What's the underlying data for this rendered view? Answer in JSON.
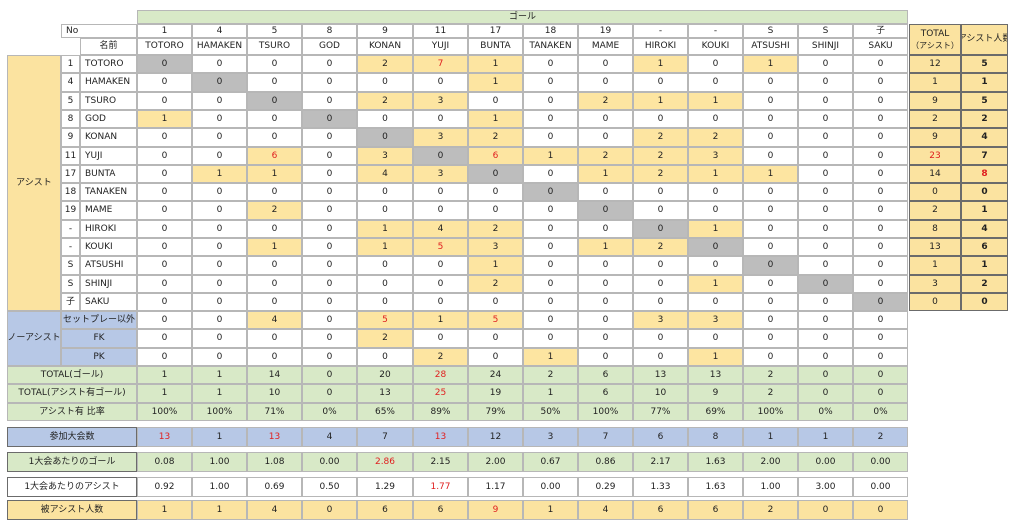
{
  "header": {
    "no_label": "No",
    "name_label": "名前",
    "goal_label": "ゴール",
    "assist_label": "アシスト",
    "no_assist_label": "ノーアシスト",
    "total_assist_label_1": "TOTAL",
    "total_assist_label_2": "（アシスト）",
    "assist_people_label": "アシスト人数"
  },
  "players": [
    {
      "no": "1",
      "name": "TOTORO"
    },
    {
      "no": "4",
      "name": "HAMAKEN"
    },
    {
      "no": "5",
      "name": "TSURO"
    },
    {
      "no": "8",
      "name": "GOD"
    },
    {
      "no": "9",
      "name": "KONAN"
    },
    {
      "no": "11",
      "name": "YUJI"
    },
    {
      "no": "17",
      "name": "BUNTA"
    },
    {
      "no": "18",
      "name": "TANAKEN"
    },
    {
      "no": "19",
      "name": "MAME"
    },
    {
      "no": "-",
      "name": "HIROKI"
    },
    {
      "no": "-",
      "name": "KOUKI"
    },
    {
      "no": "S",
      "name": "ATSUSHI"
    },
    {
      "no": "S",
      "name": "SHINJI"
    },
    {
      "no": "子",
      "name": "SAKU"
    }
  ],
  "matrix": [
    [
      "0",
      "0",
      "0",
      "0",
      "2",
      "7",
      "1",
      "0",
      "0",
      "1",
      "0",
      "1",
      "0",
      "0"
    ],
    [
      "0",
      "0",
      "0",
      "0",
      "0",
      "0",
      "1",
      "0",
      "0",
      "0",
      "0",
      "0",
      "0",
      "0"
    ],
    [
      "0",
      "0",
      "0",
      "0",
      "2",
      "3",
      "0",
      "0",
      "2",
      "1",
      "1",
      "0",
      "0",
      "0"
    ],
    [
      "1",
      "0",
      "0",
      "0",
      "0",
      "0",
      "1",
      "0",
      "0",
      "0",
      "0",
      "0",
      "0",
      "0"
    ],
    [
      "0",
      "0",
      "0",
      "0",
      "0",
      "3",
      "2",
      "0",
      "0",
      "2",
      "2",
      "0",
      "0",
      "0"
    ],
    [
      "0",
      "0",
      "6",
      "0",
      "3",
      "0",
      "6",
      "1",
      "2",
      "2",
      "3",
      "0",
      "0",
      "0"
    ],
    [
      "0",
      "1",
      "1",
      "0",
      "4",
      "3",
      "0",
      "0",
      "1",
      "2",
      "1",
      "1",
      "0",
      "0"
    ],
    [
      "0",
      "0",
      "0",
      "0",
      "0",
      "0",
      "0",
      "0",
      "0",
      "0",
      "0",
      "0",
      "0",
      "0"
    ],
    [
      "0",
      "0",
      "2",
      "0",
      "0",
      "0",
      "0",
      "0",
      "0",
      "0",
      "0",
      "0",
      "0",
      "0"
    ],
    [
      "0",
      "0",
      "0",
      "0",
      "1",
      "4",
      "2",
      "0",
      "0",
      "0",
      "1",
      "0",
      "0",
      "0"
    ],
    [
      "0",
      "0",
      "1",
      "0",
      "1",
      "5",
      "3",
      "0",
      "1",
      "2",
      "0",
      "0",
      "0",
      "0"
    ],
    [
      "0",
      "0",
      "0",
      "0",
      "0",
      "0",
      "1",
      "0",
      "0",
      "0",
      "0",
      "0",
      "0",
      "0"
    ],
    [
      "0",
      "0",
      "0",
      "0",
      "0",
      "0",
      "2",
      "0",
      "0",
      "0",
      "1",
      "0",
      "0",
      "0"
    ],
    [
      "0",
      "0",
      "0",
      "0",
      "0",
      "0",
      "0",
      "0",
      "0",
      "0",
      "0",
      "0",
      "0",
      "0"
    ]
  ],
  "matrix_red": [
    [
      0,
      5
    ],
    [
      5,
      2
    ],
    [
      5,
      6
    ],
    [
      10,
      5
    ]
  ],
  "row_total_assist": [
    "12",
    "1",
    "9",
    "2",
    "9",
    "23",
    "14",
    "0",
    "2",
    "8",
    "13",
    "1",
    "3",
    "0"
  ],
  "row_assist_people": [
    "5",
    "1",
    "5",
    "2",
    "4",
    "7",
    "8",
    "0",
    "1",
    "4",
    "6",
    "1",
    "2",
    "0"
  ],
  "no_assist_rows": [
    {
      "label": "セットプレー以外",
      "values": [
        "0",
        "0",
        "4",
        "0",
        "5",
        "1",
        "5",
        "0",
        "0",
        "3",
        "3",
        "0",
        "0",
        "0"
      ]
    },
    {
      "label": "FK",
      "values": [
        "0",
        "0",
        "0",
        "0",
        "2",
        "0",
        "0",
        "0",
        "0",
        "0",
        "0",
        "0",
        "0",
        "0"
      ]
    },
    {
      "label": "PK",
      "values": [
        "0",
        "0",
        "0",
        "0",
        "0",
        "2",
        "0",
        "1",
        "0",
        "0",
        "1",
        "0",
        "0",
        "0"
      ]
    }
  ],
  "summary_rows": [
    {
      "label": "TOTAL(ゴール)",
      "values": [
        "1",
        "1",
        "14",
        "0",
        "20",
        "28",
        "24",
        "2",
        "6",
        "13",
        "13",
        "2",
        "0",
        "0"
      ]
    },
    {
      "label": "TOTAL(アシスト有ゴール)",
      "values": [
        "1",
        "1",
        "10",
        "0",
        "13",
        "25",
        "19",
        "1",
        "6",
        "10",
        "9",
        "2",
        "0",
        "0"
      ]
    },
    {
      "label": "アシスト有  比率",
      "values": [
        "100%",
        "100%",
        "71%",
        "0%",
        "65%",
        "89%",
        "79%",
        "50%",
        "100%",
        "77%",
        "69%",
        "100%",
        "0%",
        "0%"
      ]
    }
  ],
  "stat_rows": [
    {
      "label": "参加大会数",
      "values": [
        "13",
        "1",
        "13",
        "4",
        "7",
        "13",
        "12",
        "3",
        "7",
        "6",
        "8",
        "1",
        "1",
        "2"
      ]
    },
    {
      "label": "1大会あたりのゴール",
      "values": [
        "0.08",
        "1.00",
        "1.08",
        "0.00",
        "2.86",
        "2.15",
        "2.00",
        "0.67",
        "0.86",
        "2.17",
        "1.63",
        "2.00",
        "0.00",
        "0.00"
      ]
    },
    {
      "label": "1大会あたりのアシスト",
      "values": [
        "0.92",
        "1.00",
        "0.69",
        "0.50",
        "1.29",
        "1.77",
        "1.17",
        "0.00",
        "0.29",
        "1.33",
        "1.63",
        "1.00",
        "3.00",
        "0.00"
      ]
    },
    {
      "label": "被アシスト人数",
      "values": [
        "1",
        "1",
        "4",
        "0",
        "6",
        "6",
        "9",
        "1",
        "4",
        "6",
        "6",
        "2",
        "0",
        "0"
      ]
    }
  ],
  "colors": {
    "highlight": "#fde5a1",
    "diagonal": "#bdbdbd",
    "green": "#d8e9c7",
    "blue": "#b7c8e6",
    "tan": "#fbe3a0",
    "red_text": "#e02020"
  }
}
